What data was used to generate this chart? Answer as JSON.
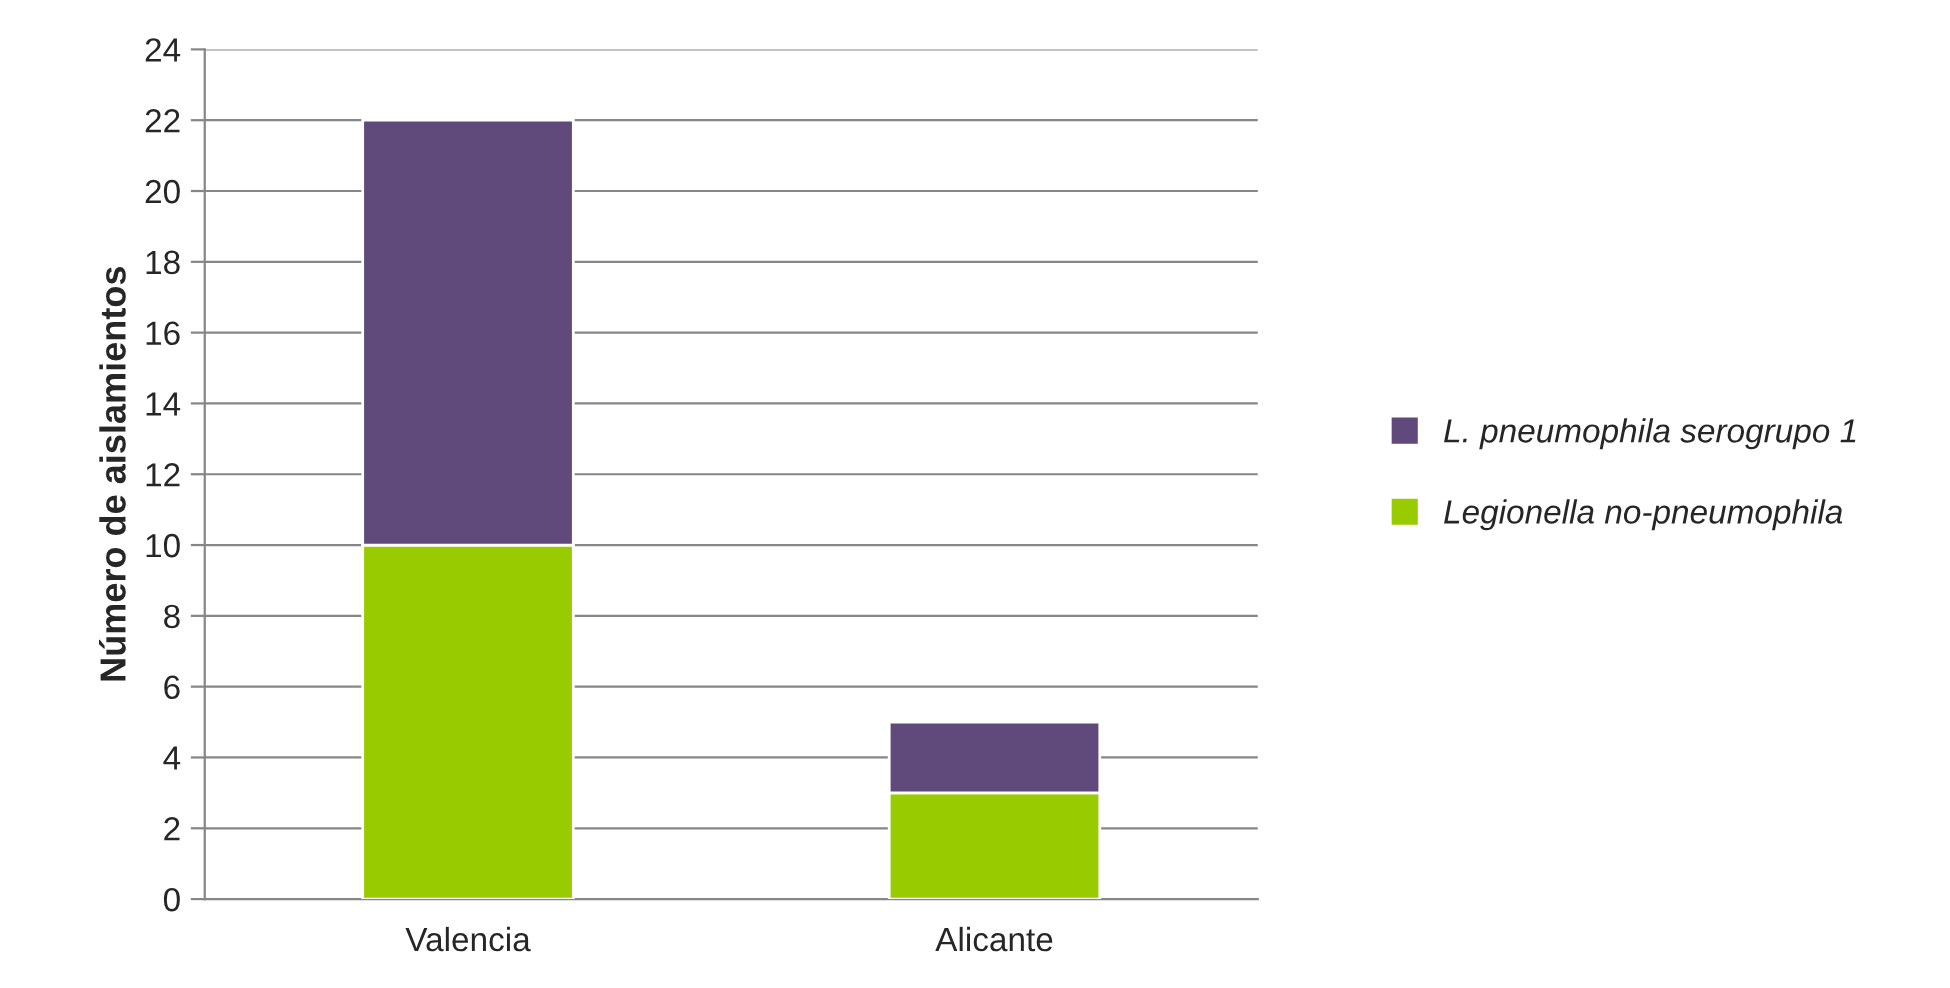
{
  "chart_data": {
    "type": "bar",
    "stacked": true,
    "ylabel": "Número de aislamientos",
    "categories": [
      "Valencia",
      "Alicante"
    ],
    "series": [
      {
        "name": "Legionella no-pneumophila",
        "color": "#99cc00",
        "values": [
          10,
          3
        ]
      },
      {
        "name": "L. pneumophila serogrupo 1",
        "color": "#604a7b",
        "values": [
          12,
          2
        ]
      }
    ],
    "ylim": [
      0,
      24
    ],
    "yticks": [
      0,
      2,
      4,
      6,
      8,
      10,
      12,
      14,
      16,
      18,
      20,
      22,
      24
    ],
    "grid": "y",
    "legend": "right"
  }
}
